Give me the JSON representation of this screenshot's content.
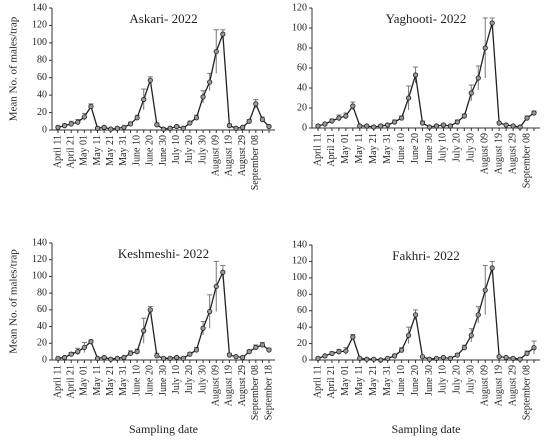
{
  "chart_data": [
    {
      "type": "line",
      "title": "Askari- 2022",
      "ylabel": "Mean No. of males/trap",
      "categories": [
        "April 11",
        null,
        "April 21",
        null,
        "May 01",
        null,
        "May 11",
        null,
        "May 21",
        null,
        "May 31",
        null,
        "June 10",
        null,
        "June 20",
        null,
        "June 30",
        null,
        "July 10",
        null,
        "July 20",
        null,
        "July 30",
        null,
        "August 09",
        null,
        "August 19",
        null,
        "August 29",
        null,
        "September 08",
        null,
        null
      ],
      "values": [
        3,
        5,
        7,
        9,
        15,
        27,
        2,
        3,
        1,
        2,
        3,
        7,
        14,
        35,
        57,
        6,
        1,
        2,
        4,
        2,
        8,
        14,
        38,
        55,
        90,
        110,
        5,
        2,
        3,
        10,
        30,
        12,
        4
      ],
      "errors": [
        1,
        2,
        3,
        3,
        4,
        3,
        1,
        1,
        1,
        1,
        1,
        2,
        3,
        12,
        4,
        2,
        1,
        1,
        1,
        1,
        2,
        3,
        7,
        10,
        25,
        5,
        2,
        1,
        1,
        2,
        5,
        3,
        1
      ],
      "ylim": [
        0,
        140
      ],
      "yticks": [
        0,
        20,
        40,
        60,
        80,
        100,
        120,
        140
      ],
      "color": "#222222"
    },
    {
      "type": "line",
      "title": "Yaghooti- 2022",
      "categories": [
        "April 11",
        null,
        "April 21",
        null,
        "May 01",
        null,
        "May 11",
        null,
        "May 21",
        null,
        "May 31",
        null,
        "June 10",
        null,
        "June 20",
        null,
        "June 30",
        null,
        "July 10",
        null,
        "July 20",
        null,
        "July 30",
        null,
        "August 09",
        null,
        "August 19",
        null,
        "August 29",
        null,
        "September 08",
        null
      ],
      "values": [
        2,
        4,
        7,
        10,
        12,
        22,
        2,
        2,
        1,
        2,
        3,
        6,
        10,
        30,
        53,
        5,
        1,
        2,
        3,
        2,
        6,
        12,
        35,
        50,
        80,
        105,
        5,
        3,
        2,
        1,
        10,
        15
      ],
      "errors": [
        1,
        1,
        2,
        3,
        3,
        4,
        1,
        1,
        1,
        1,
        1,
        2,
        2,
        12,
        8,
        2,
        1,
        1,
        1,
        1,
        2,
        2,
        8,
        12,
        30,
        5,
        1,
        1,
        1,
        1,
        2,
        2
      ],
      "ylim": [
        0,
        120
      ],
      "yticks": [
        0,
        20,
        40,
        60,
        80,
        100,
        120
      ],
      "color": "#222222"
    },
    {
      "type": "line",
      "title": "Keshmeshi- 2022",
      "ylabel": "Mean No. of males/trap",
      "xlabel": "Sampling date",
      "categories": [
        "April 11",
        null,
        "April 21",
        null,
        "May 01",
        null,
        "May 11",
        null,
        "May 21",
        null,
        "May 31",
        null,
        "June 10",
        null,
        "June 20",
        null,
        "June 30",
        null,
        "July 10",
        null,
        "July 20",
        null,
        "July 30",
        null,
        "August 09",
        null,
        "August 19",
        null,
        "August 29",
        null,
        "September 08",
        null,
        "September 18"
      ],
      "values": [
        2,
        3,
        7,
        10,
        15,
        22,
        2,
        3,
        1,
        2,
        3,
        8,
        10,
        35,
        60,
        5,
        2,
        2,
        3,
        2,
        7,
        12,
        38,
        58,
        88,
        105,
        6,
        4,
        3,
        10,
        15,
        18,
        12
      ],
      "errors": [
        1,
        1,
        2,
        4,
        6,
        2,
        1,
        1,
        1,
        1,
        1,
        3,
        3,
        15,
        4,
        3,
        1,
        1,
        1,
        1,
        2,
        3,
        8,
        20,
        30,
        8,
        2,
        1,
        1,
        2,
        3,
        3,
        2
      ],
      "ylim": [
        0,
        140
      ],
      "yticks": [
        0,
        20,
        40,
        60,
        80,
        100,
        120,
        140
      ],
      "color": "#222222"
    },
    {
      "type": "line",
      "title": "Fakhri- 2022",
      "xlabel": "Sampling date",
      "categories": [
        "April 11",
        null,
        "April 21",
        null,
        "May 01",
        null,
        "May 11",
        null,
        "May 21",
        null,
        "May 31",
        null,
        "June 10",
        null,
        "June 20",
        null,
        "June 30",
        null,
        "July 10",
        null,
        "July 20",
        null,
        "July 30",
        null,
        "August 09",
        null,
        "August 19",
        null,
        "August 29",
        null,
        "September 08",
        null
      ],
      "values": [
        2,
        5,
        8,
        10,
        11,
        28,
        2,
        1,
        1,
        0,
        2,
        5,
        12,
        30,
        55,
        4,
        1,
        2,
        3,
        2,
        6,
        15,
        30,
        55,
        85,
        112,
        4,
        3,
        2,
        1,
        8,
        15
      ],
      "errors": [
        1,
        1,
        2,
        3,
        4,
        3,
        1,
        1,
        1,
        1,
        1,
        2,
        3,
        10,
        6,
        1,
        1,
        1,
        1,
        1,
        2,
        3,
        8,
        10,
        30,
        8,
        1,
        1,
        1,
        1,
        3,
        8
      ],
      "ylim": [
        0,
        140
      ],
      "yticks": [
        0,
        20,
        40,
        60,
        80,
        100,
        120,
        140
      ],
      "color": "#222222"
    }
  ]
}
